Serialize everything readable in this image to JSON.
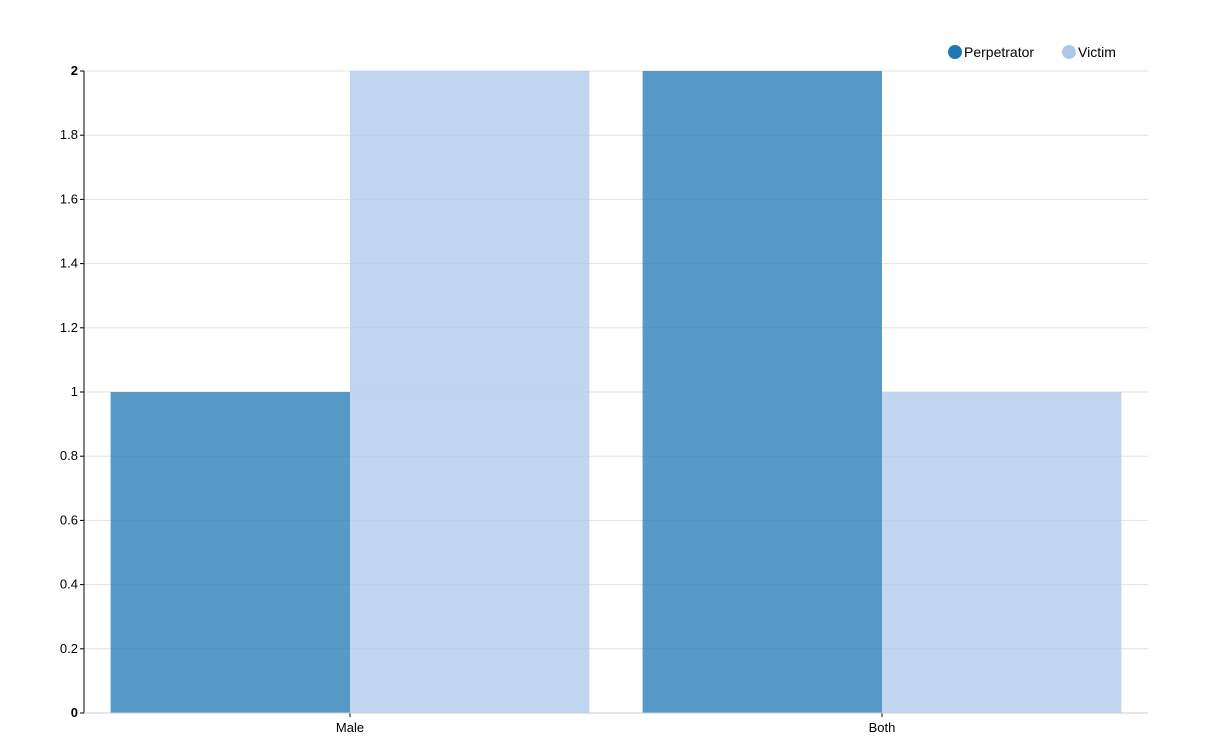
{
  "chart_data": {
    "type": "bar",
    "categories": [
      "Male",
      "Both"
    ],
    "series": [
      {
        "name": "Perpetrator",
        "values": [
          1,
          2
        ],
        "color": "#1f77b4"
      },
      {
        "name": "Victim",
        "values": [
          2,
          1
        ],
        "color": "#aec7e8"
      }
    ],
    "title": "",
    "xlabel": "",
    "ylabel": "",
    "ylim": [
      0,
      2
    ],
    "yticks": [
      "0",
      "0.2",
      "0.4",
      "0.6",
      "0.8",
      "1",
      "1.2",
      "1.4",
      "1.6",
      "1.8",
      "2"
    ],
    "grid": true,
    "legend_position": "top-right"
  }
}
